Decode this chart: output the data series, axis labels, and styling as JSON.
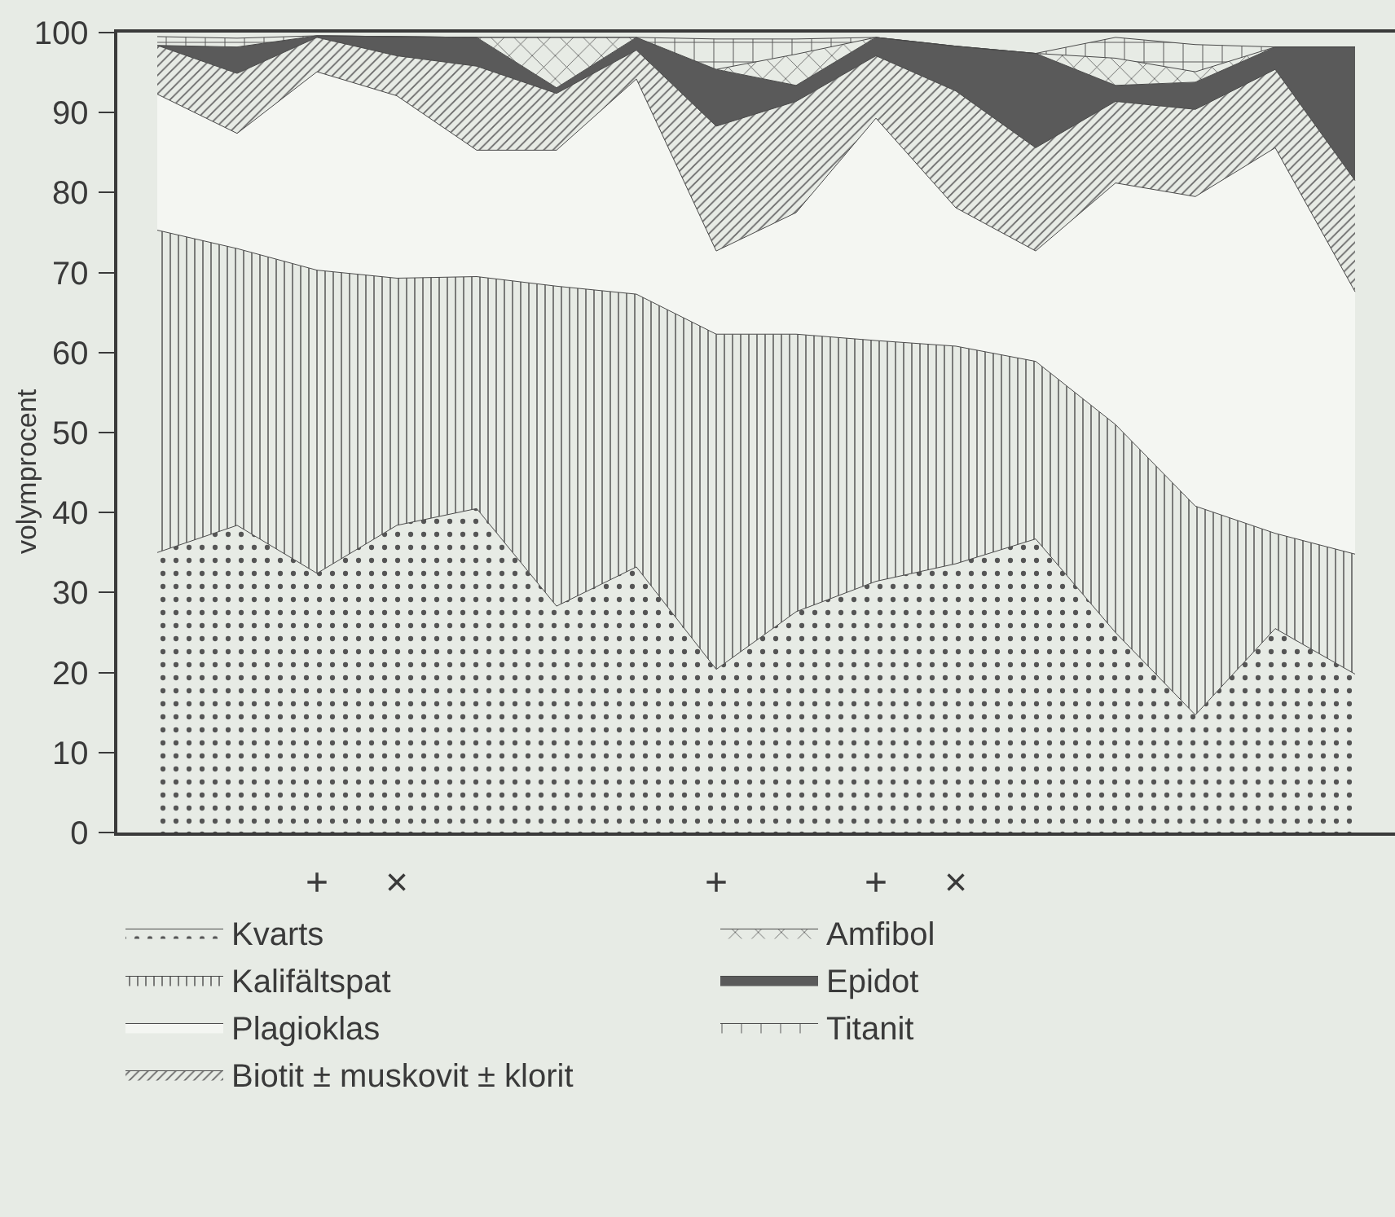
{
  "chart_data": {
    "type": "area",
    "stacked": true,
    "ylabel": "volymprocent",
    "categories": [
      null,
      null,
      "+",
      "×",
      null,
      null,
      null,
      "+",
      null,
      "+",
      "×",
      null,
      null,
      null,
      null,
      null
    ],
    "ylim": [
      0,
      100
    ],
    "yticks": [
      0,
      10,
      20,
      30,
      40,
      50,
      60,
      70,
      80,
      90,
      100
    ],
    "legend": "bottom",
    "series": [
      {
        "name": "Kvarts",
        "color": "#555555",
        "values": [
          35.0,
          38.4,
          32.4,
          38.4,
          40.5,
          28.3,
          33.2,
          20.4,
          27.6,
          31.4,
          33.6,
          36.7,
          25.0,
          14.7,
          25.5,
          19.8
        ]
      },
      {
        "name": "Kalifältspat",
        "color": "#555555",
        "values": [
          40.3,
          34.6,
          37.9,
          30.9,
          29.0,
          40.0,
          34.1,
          41.9,
          34.7,
          30.1,
          27.2,
          22.2,
          26.0,
          26.1,
          11.9,
          15.0
        ]
      },
      {
        "name": "Plagioklas",
        "color": "#f4f6f2",
        "values": [
          17.0,
          14.4,
          24.8,
          22.8,
          15.8,
          17.0,
          26.9,
          10.4,
          15.2,
          27.8,
          17.3,
          13.8,
          30.2,
          38.7,
          48.2,
          32.8
        ]
      },
      {
        "name": "Biotit ± muskovit ± klorit",
        "color": "#666666",
        "values": [
          6.1,
          7.5,
          4.3,
          5.0,
          10.5,
          7.1,
          3.6,
          15.6,
          13.9,
          7.8,
          14.6,
          12.9,
          10.2,
          10.9,
          9.8,
          13.9
        ]
      },
      {
        "name": "Epidot",
        "color": "#5a5a5a",
        "values": [
          0,
          3.3,
          0.2,
          2.4,
          3.6,
          0.7,
          1.6,
          7.1,
          2.0,
          2.3,
          5.6,
          11.8,
          2.0,
          3.4,
          2.8,
          16.7
        ]
      },
      {
        "name": "Amfibol",
        "color": "#555555",
        "values": [
          0,
          0,
          0,
          0,
          0,
          6.3,
          0,
          0,
          3.9,
          0,
          0,
          0,
          3.4,
          1.3,
          0,
          0
        ]
      },
      {
        "name": "Titanit",
        "color": "#555555",
        "values": [
          1.1,
          1.1,
          0,
          0,
          0,
          0,
          0,
          3.8,
          1.9,
          0,
          0,
          0,
          2.6,
          3.4,
          0,
          0
        ]
      }
    ]
  }
}
